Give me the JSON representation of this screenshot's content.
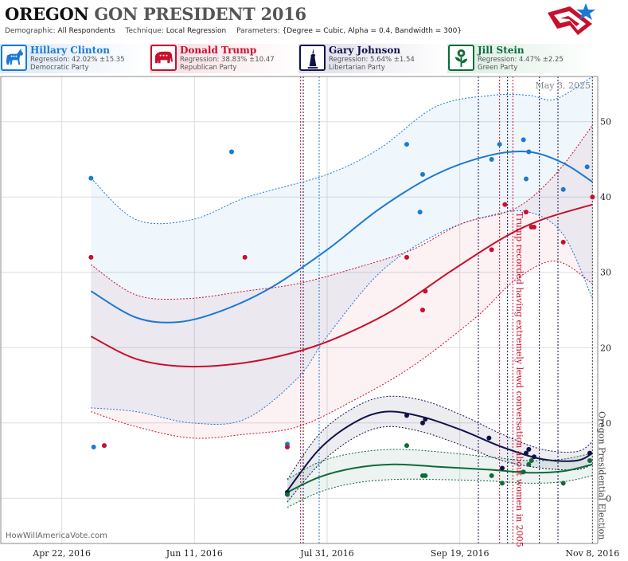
{
  "header": {
    "title_main": "OREGON",
    "title_rest": "GON PRESIDENT 2016",
    "demographic_label": "Demographic:",
    "demographic_value": "All Respondents",
    "technique_label": "Technique:",
    "technique_value": "Local Regression",
    "parameters_label": "Parameters:",
    "parameters_value": "{Degree = Cubic, Alpha = 0.4, Bandwidth = 300}"
  },
  "candidates": [
    {
      "name": "Hillary Clinton",
      "regression": "Regression: 42.02% ±15.35",
      "party": "Democratic Party",
      "color": "#1a7ad4",
      "icon": "donkey-icon"
    },
    {
      "name": "Donald Trump",
      "regression": "Regression: 38.83% ±10.47",
      "party": "Republican Party",
      "color": "#c8102e",
      "icon": "elephant-icon"
    },
    {
      "name": "Gary Johnson",
      "regression": "Regression: 5.64% ±1.54",
      "party": "Libertarian Party",
      "color": "#12124a",
      "icon": "liberty-statue-icon"
    },
    {
      "name": "Jill Stein",
      "regression": "Regression: 4.47% ±2.25",
      "party": "Green Party",
      "color": "#0e6b3a",
      "icon": "flower-icon"
    }
  ],
  "watermark": "HowWillAmericaVote.com",
  "chart_data": {
    "type": "scatter",
    "date_label": "May 3, 2025",
    "x_ticks": [
      "2016-04-22",
      "2016-06-11",
      "2016-07-31",
      "2016-09-19",
      "2016-11-08"
    ],
    "x_tick_labels": [
      "Apr 22, 2016",
      "Jun 11, 2016",
      "Jul 31, 2016",
      "Sep 19, 2016",
      "Nov 8, 2016"
    ],
    "x_range": [
      "2016-03-30",
      "2016-11-10"
    ],
    "y_range": [
      -6,
      56
    ],
    "y_ticks": [
      0,
      10,
      20,
      30,
      40,
      50
    ],
    "grid": true,
    "annotations": [
      {
        "text": "Trump recorded having extremely lewd conversation about women in 2005",
        "date": "2016-10-08",
        "color": "#c8102e"
      },
      {
        "text": "Oregon Presidential Election",
        "date": "2016-11-08",
        "color": "#444444"
      }
    ],
    "event_lines": [
      {
        "date": "2016-07-21",
        "color": "#c8102e"
      },
      {
        "date": "2016-07-22",
        "color": "#12124a"
      },
      {
        "date": "2016-07-28",
        "color": "#1a7ad4"
      },
      {
        "date": "2016-09-26",
        "color": "#12124a"
      },
      {
        "date": "2016-10-04",
        "color": "#c8102e"
      },
      {
        "date": "2016-10-07",
        "color": "#12124a"
      },
      {
        "date": "2016-10-09",
        "color": "#c8102e"
      },
      {
        "date": "2016-10-19",
        "color": "#12124a"
      },
      {
        "date": "2016-10-26",
        "color": "#12124a"
      },
      {
        "date": "2016-11-08",
        "color": "#444444"
      }
    ],
    "series": [
      {
        "name": "Hillary Clinton",
        "color": "#1a7ad4",
        "points": [
          [
            "2016-05-03",
            42.5
          ],
          [
            "2016-05-04",
            6.8
          ],
          [
            "2016-06-25",
            46
          ],
          [
            "2016-07-16",
            7.2
          ],
          [
            "2016-08-30",
            47
          ],
          [
            "2016-09-04",
            38
          ],
          [
            "2016-09-05",
            43
          ],
          [
            "2016-10-01",
            45
          ],
          [
            "2016-10-04",
            47
          ],
          [
            "2016-10-13",
            47.6
          ],
          [
            "2016-10-14",
            42.4
          ],
          [
            "2016-10-15",
            46
          ],
          [
            "2016-10-28",
            41
          ],
          [
            "2016-11-06",
            44
          ]
        ],
        "fit": [
          [
            "2016-05-03",
            27.5
          ],
          [
            "2016-05-20",
            24
          ],
          [
            "2016-06-05",
            23.4
          ],
          [
            "2016-06-22",
            25
          ],
          [
            "2016-07-10",
            28
          ],
          [
            "2016-07-31",
            33
          ],
          [
            "2016-08-20",
            38.5
          ],
          [
            "2016-09-10",
            43
          ],
          [
            "2016-09-30",
            45.5
          ],
          [
            "2016-10-15",
            46
          ],
          [
            "2016-10-28",
            44.5
          ],
          [
            "2016-11-08",
            42
          ]
        ],
        "upper": [
          [
            "2016-05-03",
            42.5
          ],
          [
            "2016-05-20",
            37
          ],
          [
            "2016-06-10",
            37
          ],
          [
            "2016-07-01",
            40
          ],
          [
            "2016-07-31",
            43
          ],
          [
            "2016-08-20",
            46.5
          ],
          [
            "2016-09-10",
            52
          ],
          [
            "2016-10-01",
            53.5
          ],
          [
            "2016-10-15",
            53.5
          ],
          [
            "2016-10-25",
            53
          ],
          [
            "2016-11-08",
            57
          ]
        ],
        "lower": [
          [
            "2016-05-03",
            12
          ],
          [
            "2016-05-20",
            11.5
          ],
          [
            "2016-06-10",
            10
          ],
          [
            "2016-06-30",
            10.5
          ],
          [
            "2016-07-20",
            16
          ],
          [
            "2016-07-31",
            21.5
          ],
          [
            "2016-08-20",
            30
          ],
          [
            "2016-09-10",
            35
          ],
          [
            "2016-09-30",
            37.5
          ],
          [
            "2016-10-15",
            38
          ],
          [
            "2016-10-28",
            35
          ],
          [
            "2016-11-08",
            26.5
          ]
        ]
      },
      {
        "name": "Donald Trump",
        "color": "#c8102e",
        "points": [
          [
            "2016-05-03",
            32
          ],
          [
            "2016-05-08",
            7
          ],
          [
            "2016-06-30",
            32
          ],
          [
            "2016-07-16",
            6.8
          ],
          [
            "2016-08-30",
            32
          ],
          [
            "2016-09-05",
            25
          ],
          [
            "2016-09-06",
            27.5
          ],
          [
            "2016-10-01",
            33
          ],
          [
            "2016-10-06",
            39
          ],
          [
            "2016-10-14",
            38
          ],
          [
            "2016-10-16",
            36
          ],
          [
            "2016-10-17",
            36
          ],
          [
            "2016-10-28",
            34
          ],
          [
            "2016-11-08",
            40
          ]
        ],
        "fit": [
          [
            "2016-05-03",
            21.5
          ],
          [
            "2016-05-20",
            18.5
          ],
          [
            "2016-06-08",
            17.5
          ],
          [
            "2016-06-30",
            18
          ],
          [
            "2016-07-20",
            19.5
          ],
          [
            "2016-08-05",
            21.5
          ],
          [
            "2016-08-25",
            25
          ],
          [
            "2016-09-15",
            30
          ],
          [
            "2016-10-05",
            34.5
          ],
          [
            "2016-10-20",
            37
          ],
          [
            "2016-11-08",
            39
          ]
        ],
        "upper": [
          [
            "2016-05-03",
            31
          ],
          [
            "2016-05-20",
            27
          ],
          [
            "2016-06-08",
            26.5
          ],
          [
            "2016-06-30",
            27.5
          ],
          [
            "2016-07-20",
            28.5
          ],
          [
            "2016-08-10",
            30.5
          ],
          [
            "2016-09-01",
            33
          ],
          [
            "2016-09-20",
            36.5
          ],
          [
            "2016-10-10",
            38.5
          ],
          [
            "2016-10-25",
            43
          ],
          [
            "2016-11-08",
            49.5
          ]
        ],
        "lower": [
          [
            "2016-05-03",
            11.5
          ],
          [
            "2016-05-20",
            9.5
          ],
          [
            "2016-06-10",
            8
          ],
          [
            "2016-06-30",
            8.5
          ],
          [
            "2016-07-20",
            9.5
          ],
          [
            "2016-08-10",
            13
          ],
          [
            "2016-09-01",
            17.5
          ],
          [
            "2016-09-25",
            24
          ],
          [
            "2016-10-10",
            29
          ],
          [
            "2016-10-25",
            31.5
          ],
          [
            "2016-11-08",
            28.5
          ]
        ]
      },
      {
        "name": "Gary Johnson",
        "color": "#12124a",
        "points": [
          [
            "2016-07-16",
            0.8
          ],
          [
            "2016-08-30",
            11
          ],
          [
            "2016-09-05",
            10
          ],
          [
            "2016-09-06",
            10.5
          ],
          [
            "2016-09-30",
            8
          ],
          [
            "2016-10-05",
            4
          ],
          [
            "2016-10-14",
            6
          ],
          [
            "2016-10-15",
            6.5
          ],
          [
            "2016-10-17",
            5.5
          ],
          [
            "2016-11-07",
            6
          ]
        ],
        "fit": [
          [
            "2016-07-16",
            1
          ],
          [
            "2016-07-28",
            6.5
          ],
          [
            "2016-08-10",
            10
          ],
          [
            "2016-08-22",
            11.5
          ],
          [
            "2016-09-05",
            10.8
          ],
          [
            "2016-09-20",
            9
          ],
          [
            "2016-10-05",
            6.8
          ],
          [
            "2016-10-20",
            5.2
          ],
          [
            "2016-11-02",
            5
          ],
          [
            "2016-11-08",
            6
          ]
        ],
        "upper": [
          [
            "2016-07-16",
            2.5
          ],
          [
            "2016-07-28",
            8.5
          ],
          [
            "2016-08-10",
            12
          ],
          [
            "2016-08-22",
            13.5
          ],
          [
            "2016-09-05",
            13
          ],
          [
            "2016-09-20",
            11
          ],
          [
            "2016-10-05",
            8.5
          ],
          [
            "2016-10-20",
            6.5
          ],
          [
            "2016-11-02",
            6.2
          ],
          [
            "2016-11-08",
            7.5
          ]
        ],
        "lower": [
          [
            "2016-07-16",
            -0.5
          ],
          [
            "2016-07-28",
            4.5
          ],
          [
            "2016-08-10",
            8
          ],
          [
            "2016-08-22",
            9.5
          ],
          [
            "2016-09-05",
            8.8
          ],
          [
            "2016-09-20",
            7
          ],
          [
            "2016-10-05",
            5
          ],
          [
            "2016-10-20",
            4
          ],
          [
            "2016-11-02",
            3.8
          ],
          [
            "2016-11-08",
            4.5
          ]
        ]
      },
      {
        "name": "Jill Stein",
        "color": "#0e6b3a",
        "points": [
          [
            "2016-07-16",
            0.5
          ],
          [
            "2016-08-30",
            7
          ],
          [
            "2016-09-05",
            3
          ],
          [
            "2016-09-06",
            3
          ],
          [
            "2016-10-01",
            3
          ],
          [
            "2016-10-05",
            2
          ],
          [
            "2016-10-13",
            3.5
          ],
          [
            "2016-10-15",
            4.5
          ],
          [
            "2016-10-16",
            5
          ],
          [
            "2016-10-28",
            2
          ],
          [
            "2016-11-07",
            5
          ]
        ],
        "fit": [
          [
            "2016-07-16",
            0.8
          ],
          [
            "2016-07-28",
            2.8
          ],
          [
            "2016-08-10",
            4
          ],
          [
            "2016-08-25",
            4.5
          ],
          [
            "2016-09-10",
            4.2
          ],
          [
            "2016-09-30",
            3.8
          ],
          [
            "2016-10-15",
            3.4
          ],
          [
            "2016-10-28",
            3.6
          ],
          [
            "2016-11-08",
            4.5
          ]
        ],
        "upper": [
          [
            "2016-07-16",
            2.5
          ],
          [
            "2016-07-28",
            4.8
          ],
          [
            "2016-08-10",
            6
          ],
          [
            "2016-08-25",
            6.5
          ],
          [
            "2016-09-10",
            6.2
          ],
          [
            "2016-09-30",
            5.5
          ],
          [
            "2016-10-15",
            5
          ],
          [
            "2016-10-28",
            5.2
          ],
          [
            "2016-11-08",
            6
          ]
        ],
        "lower": [
          [
            "2016-07-16",
            -1.2
          ],
          [
            "2016-07-28",
            0.8
          ],
          [
            "2016-08-10",
            2
          ],
          [
            "2016-08-25",
            2.5
          ],
          [
            "2016-09-10",
            2.5
          ],
          [
            "2016-09-30",
            2.3
          ],
          [
            "2016-10-15",
            2
          ],
          [
            "2016-10-28",
            2.2
          ],
          [
            "2016-11-08",
            3
          ]
        ]
      }
    ]
  }
}
